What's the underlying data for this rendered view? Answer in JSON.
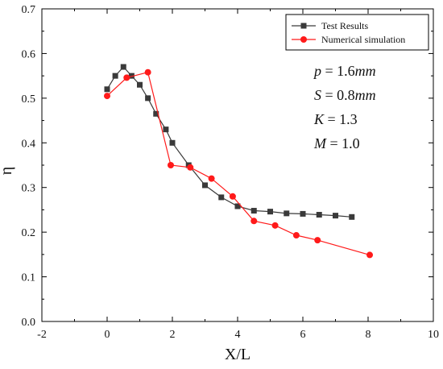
{
  "chart_data": {
    "type": "line",
    "xlabel": "X/L",
    "ylabel": "η",
    "xlim": [
      -2,
      10
    ],
    "ylim": [
      0.0,
      0.7
    ],
    "xticks": [
      "-2",
      "0",
      "2",
      "4",
      "6",
      "8",
      "10"
    ],
    "yticks": [
      "0.0",
      "0.1",
      "0.2",
      "0.3",
      "0.4",
      "0.5",
      "0.6",
      "0.7"
    ],
    "grid": false,
    "legend_position": "top-right",
    "series": [
      {
        "name": "Test Results",
        "marker": "square",
        "color": "#3a3a3a",
        "x": [
          0.0,
          0.25,
          0.5,
          0.75,
          1.0,
          1.25,
          1.5,
          1.8,
          2.0,
          2.5,
          3.0,
          3.5,
          4.0,
          4.5,
          5.0,
          5.5,
          6.0,
          6.5,
          7.0,
          7.5
        ],
        "y": [
          0.52,
          0.55,
          0.57,
          0.55,
          0.53,
          0.5,
          0.465,
          0.43,
          0.4,
          0.35,
          0.305,
          0.278,
          0.258,
          0.248,
          0.246,
          0.242,
          0.241,
          0.239,
          0.237,
          0.234
        ]
      },
      {
        "name": "Numerical simulation",
        "marker": "circle",
        "color": "#ff1a1a",
        "x": [
          0.0,
          0.6,
          1.25,
          1.95,
          2.55,
          3.2,
          3.85,
          4.5,
          5.15,
          5.8,
          6.45,
          8.05
        ],
        "y": [
          0.505,
          0.546,
          0.558,
          0.35,
          0.345,
          0.32,
          0.28,
          0.225,
          0.215,
          0.193,
          0.182,
          0.149
        ]
      }
    ],
    "annotations": [
      {
        "var": "p",
        "value": " = 1.6",
        "unit": "mm"
      },
      {
        "var": "S",
        "value": " = 0.8",
        "unit": "mm"
      },
      {
        "var": "K",
        "value": " = 1.3",
        "unit": ""
      },
      {
        "var": "M",
        "value": " = 1.0",
        "unit": ""
      }
    ]
  }
}
